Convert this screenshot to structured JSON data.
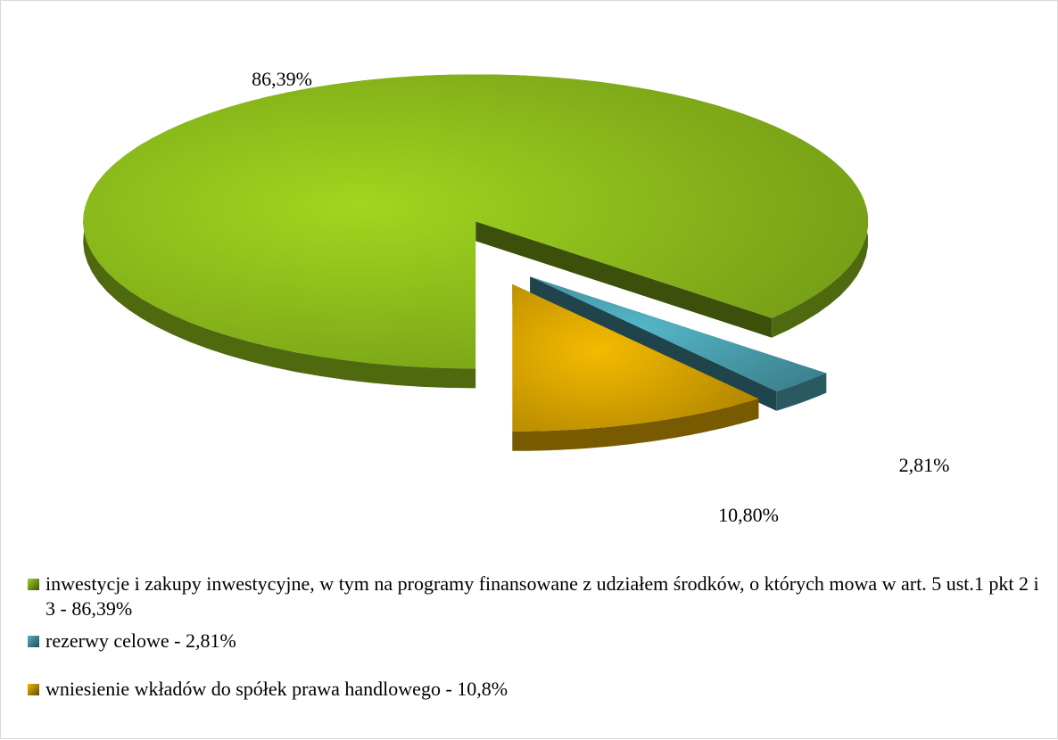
{
  "chart_data": {
    "type": "pie",
    "categories": [
      "inwestycje i zakupy inwestycyjne, w tym na programy finansowane z udziałem środków, o których mowa w art. 5 ust.1 pkt 2 i 3  - 86,39%",
      "rezerwy celowe - 2,81%",
      "wniesienie wkładów do spółek prawa handlowego - 10,8%"
    ],
    "values": [
      86.39,
      2.81,
      10.8
    ],
    "value_labels": [
      "86,39%",
      "2,81%",
      "10,80%"
    ],
    "colors": [
      "#8fbf1c",
      "#4ba3b3",
      "#dba600"
    ],
    "legend": "bottom"
  }
}
